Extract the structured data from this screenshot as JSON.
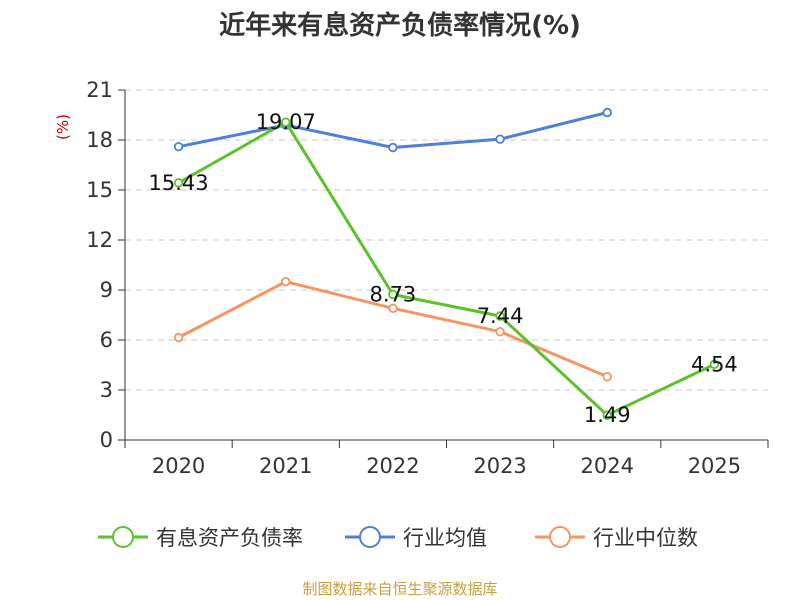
{
  "chart_data": {
    "type": "line",
    "title": "近年来有息资产负债率情况(%)",
    "unit_label": "(%)",
    "categories": [
      "2020",
      "2021",
      "2022",
      "2023",
      "2024",
      "2025"
    ],
    "ylim": [
      0,
      21
    ],
    "yticks": [
      0,
      3,
      6,
      9,
      12,
      15,
      18,
      21
    ],
    "grid": true,
    "legend_position": "bottom",
    "series": [
      {
        "name": "有息资产负债率",
        "color": "#5cc22b",
        "values": [
          15.43,
          19.07,
          8.73,
          7.44,
          1.49,
          4.54
        ],
        "labels": [
          "15.43",
          "19.07",
          "8.73",
          "7.44",
          "1.49",
          "4.54"
        ]
      },
      {
        "name": "行业均值",
        "color": "#4e80d8",
        "values": [
          17.6,
          18.9,
          17.55,
          18.05,
          19.65,
          null
        ]
      },
      {
        "name": "行业中位数",
        "color": "#f49563",
        "values": [
          6.15,
          9.5,
          7.9,
          6.5,
          3.8,
          null
        ]
      }
    ]
  },
  "source": "制图数据来自恒生聚源数据库"
}
